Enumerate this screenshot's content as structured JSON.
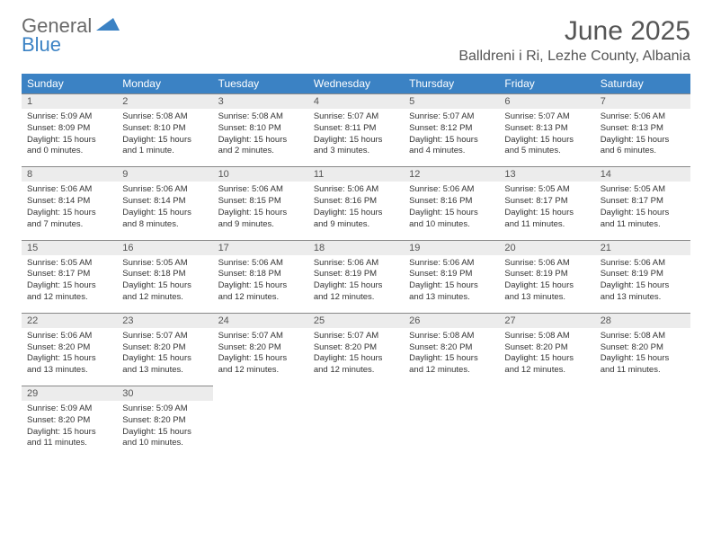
{
  "brand": {
    "part1": "General",
    "part2": "Blue"
  },
  "title": "June 2025",
  "location": "Balldreni i Ri, Lezhe County, Albania",
  "colors": {
    "header_bg": "#3b82c4",
    "header_text": "#ffffff",
    "daynum_bg": "#ececec",
    "daynum_border": "#888888",
    "text": "#333333",
    "title_color": "#555555"
  },
  "fonts": {
    "title_size": 30,
    "location_size": 16,
    "th_size": 12,
    "daynum_size": 11,
    "body_size": 9.5
  },
  "weekdays": [
    "Sunday",
    "Monday",
    "Tuesday",
    "Wednesday",
    "Thursday",
    "Friday",
    "Saturday"
  ],
  "days": [
    {
      "n": 1,
      "sr": "5:09 AM",
      "ss": "8:09 PM",
      "dl": "15 hours and 0 minutes."
    },
    {
      "n": 2,
      "sr": "5:08 AM",
      "ss": "8:10 PM",
      "dl": "15 hours and 1 minute."
    },
    {
      "n": 3,
      "sr": "5:08 AM",
      "ss": "8:10 PM",
      "dl": "15 hours and 2 minutes."
    },
    {
      "n": 4,
      "sr": "5:07 AM",
      "ss": "8:11 PM",
      "dl": "15 hours and 3 minutes."
    },
    {
      "n": 5,
      "sr": "5:07 AM",
      "ss": "8:12 PM",
      "dl": "15 hours and 4 minutes."
    },
    {
      "n": 6,
      "sr": "5:07 AM",
      "ss": "8:13 PM",
      "dl": "15 hours and 5 minutes."
    },
    {
      "n": 7,
      "sr": "5:06 AM",
      "ss": "8:13 PM",
      "dl": "15 hours and 6 minutes."
    },
    {
      "n": 8,
      "sr": "5:06 AM",
      "ss": "8:14 PM",
      "dl": "15 hours and 7 minutes."
    },
    {
      "n": 9,
      "sr": "5:06 AM",
      "ss": "8:14 PM",
      "dl": "15 hours and 8 minutes."
    },
    {
      "n": 10,
      "sr": "5:06 AM",
      "ss": "8:15 PM",
      "dl": "15 hours and 9 minutes."
    },
    {
      "n": 11,
      "sr": "5:06 AM",
      "ss": "8:16 PM",
      "dl": "15 hours and 9 minutes."
    },
    {
      "n": 12,
      "sr": "5:06 AM",
      "ss": "8:16 PM",
      "dl": "15 hours and 10 minutes."
    },
    {
      "n": 13,
      "sr": "5:05 AM",
      "ss": "8:17 PM",
      "dl": "15 hours and 11 minutes."
    },
    {
      "n": 14,
      "sr": "5:05 AM",
      "ss": "8:17 PM",
      "dl": "15 hours and 11 minutes."
    },
    {
      "n": 15,
      "sr": "5:05 AM",
      "ss": "8:17 PM",
      "dl": "15 hours and 12 minutes."
    },
    {
      "n": 16,
      "sr": "5:05 AM",
      "ss": "8:18 PM",
      "dl": "15 hours and 12 minutes."
    },
    {
      "n": 17,
      "sr": "5:06 AM",
      "ss": "8:18 PM",
      "dl": "15 hours and 12 minutes."
    },
    {
      "n": 18,
      "sr": "5:06 AM",
      "ss": "8:19 PM",
      "dl": "15 hours and 12 minutes."
    },
    {
      "n": 19,
      "sr": "5:06 AM",
      "ss": "8:19 PM",
      "dl": "15 hours and 13 minutes."
    },
    {
      "n": 20,
      "sr": "5:06 AM",
      "ss": "8:19 PM",
      "dl": "15 hours and 13 minutes."
    },
    {
      "n": 21,
      "sr": "5:06 AM",
      "ss": "8:19 PM",
      "dl": "15 hours and 13 minutes."
    },
    {
      "n": 22,
      "sr": "5:06 AM",
      "ss": "8:20 PM",
      "dl": "15 hours and 13 minutes."
    },
    {
      "n": 23,
      "sr": "5:07 AM",
      "ss": "8:20 PM",
      "dl": "15 hours and 13 minutes."
    },
    {
      "n": 24,
      "sr": "5:07 AM",
      "ss": "8:20 PM",
      "dl": "15 hours and 12 minutes."
    },
    {
      "n": 25,
      "sr": "5:07 AM",
      "ss": "8:20 PM",
      "dl": "15 hours and 12 minutes."
    },
    {
      "n": 26,
      "sr": "5:08 AM",
      "ss": "8:20 PM",
      "dl": "15 hours and 12 minutes."
    },
    {
      "n": 27,
      "sr": "5:08 AM",
      "ss": "8:20 PM",
      "dl": "15 hours and 12 minutes."
    },
    {
      "n": 28,
      "sr": "5:08 AM",
      "ss": "8:20 PM",
      "dl": "15 hours and 11 minutes."
    },
    {
      "n": 29,
      "sr": "5:09 AM",
      "ss": "8:20 PM",
      "dl": "15 hours and 11 minutes."
    },
    {
      "n": 30,
      "sr": "5:09 AM",
      "ss": "8:20 PM",
      "dl": "15 hours and 10 minutes."
    }
  ],
  "labels": {
    "sunrise": "Sunrise:",
    "sunset": "Sunset:",
    "daylight": "Daylight:"
  }
}
